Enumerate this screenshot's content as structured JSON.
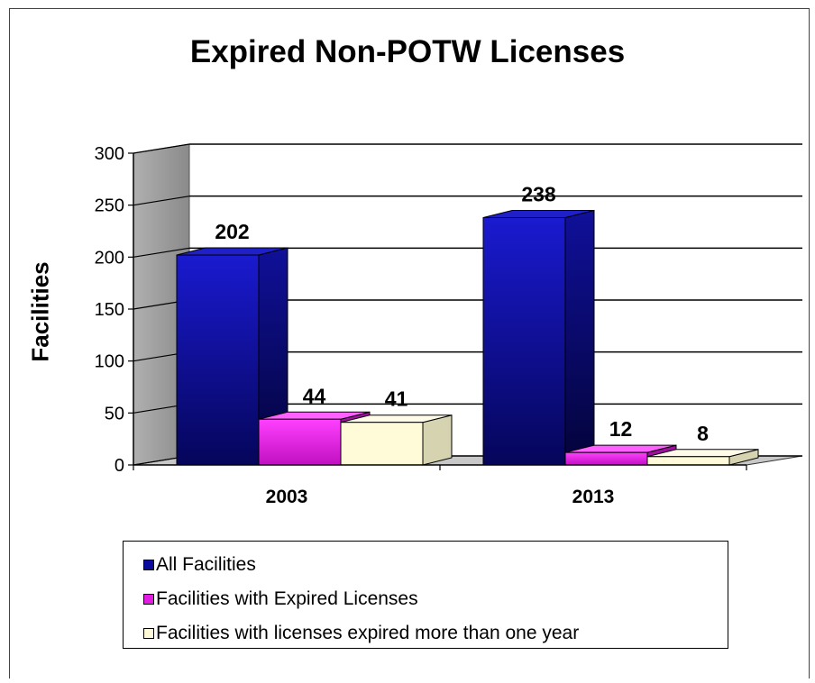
{
  "chart_data": {
    "type": "bar",
    "title": "Expired Non-POTW Licenses",
    "ylabel": "Facilities",
    "xlabel": "",
    "categories": [
      "2003",
      "2013"
    ],
    "ylim": [
      0,
      300
    ],
    "yticks": [
      0,
      50,
      100,
      150,
      200,
      250,
      300
    ],
    "grid": true,
    "legend_position": "bottom",
    "series": [
      {
        "name": "All Facilities",
        "values": [
          202,
          238
        ],
        "color": "#0a0a9e"
      },
      {
        "name": "Facilities with Expired Licenses",
        "values": [
          44,
          12
        ],
        "color": "#e21ce2"
      },
      {
        "name": "Facilities with licenses expired more than one year",
        "values": [
          41,
          8
        ],
        "color": "#fffbd9"
      }
    ]
  }
}
